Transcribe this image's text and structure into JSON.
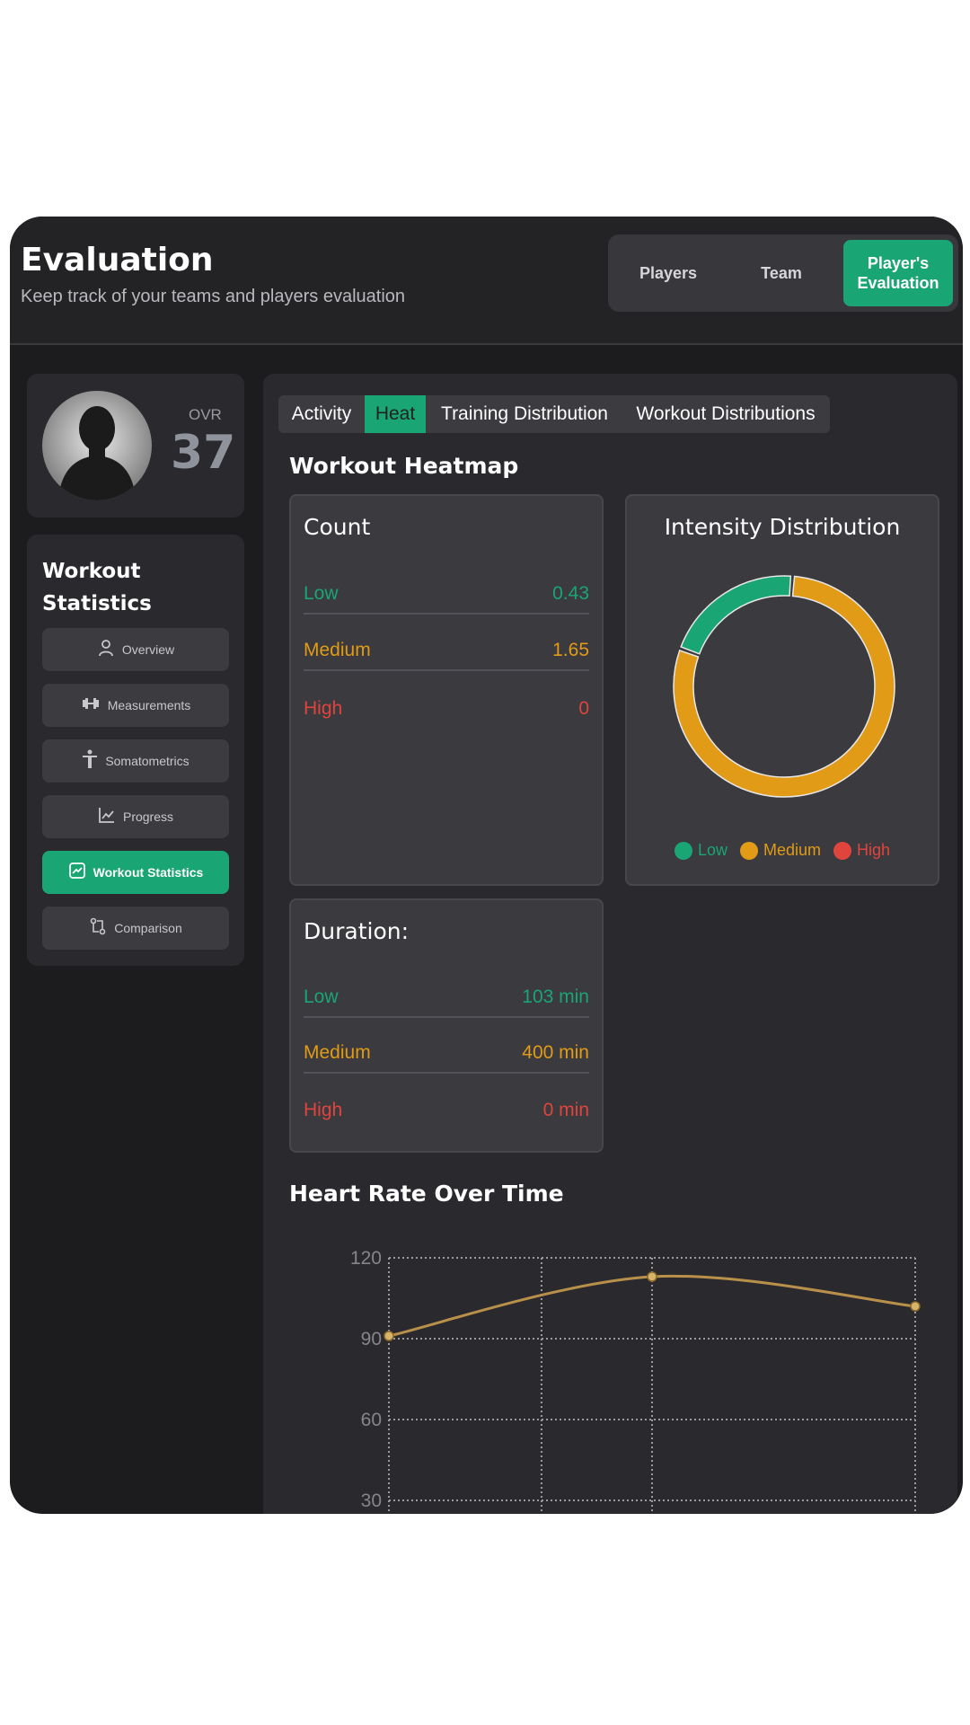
{
  "header": {
    "title": "Evaluation",
    "subtitle": "Keep track of your teams and players evaluation",
    "segments": [
      {
        "label": "Players",
        "active": false
      },
      {
        "label": "Team",
        "active": false
      },
      {
        "label": "Player's Evaluation",
        "active": true
      }
    ]
  },
  "profile": {
    "ovr_label": "OVR",
    "ovr_value": "37"
  },
  "sidebar": {
    "title": "Workout Statistics",
    "items": [
      {
        "label": "Overview",
        "icon": "user-icon",
        "active": false
      },
      {
        "label": "Measurements",
        "icon": "dumbbell-icon",
        "active": false
      },
      {
        "label": "Somatometrics",
        "icon": "body-icon",
        "active": false
      },
      {
        "label": "Progress",
        "icon": "line-chart-icon",
        "active": false
      },
      {
        "label": "Workout Statistics",
        "icon": "stats-icon",
        "active": true
      },
      {
        "label": "Comparison",
        "icon": "compare-icon",
        "active": false
      }
    ]
  },
  "tabs": [
    {
      "label": "Activity",
      "active": false
    },
    {
      "label": "Heat",
      "active": true
    },
    {
      "label": "Training Distribution",
      "active": false
    },
    {
      "label": "Workout Distributions",
      "active": false
    }
  ],
  "heatmap": {
    "title": "Workout Heatmap",
    "count": {
      "title": "Count",
      "rows": [
        {
          "label": "Low",
          "value": "0.43"
        },
        {
          "label": "Medium",
          "value": "1.65"
        },
        {
          "label": "High",
          "value": "0"
        }
      ]
    },
    "intensity": {
      "title": "Intensity Distribution",
      "legend": [
        "Low",
        "Medium",
        "High"
      ]
    },
    "duration": {
      "title": "Duration:",
      "rows": [
        {
          "label": "Low",
          "value": "103 min"
        },
        {
          "label": "Medium",
          "value": "400 min"
        },
        {
          "label": "High",
          "value": "0 min"
        }
      ]
    }
  },
  "heart_rate": {
    "title": "Heart Rate Over Time"
  },
  "colors": {
    "low": "#1aa574",
    "medium": "#e19b17",
    "high": "#e0453d",
    "accent": "#1aa574",
    "line": "#b9904a"
  },
  "chart_data": [
    {
      "type": "pie",
      "title": "Intensity Distribution",
      "categories": [
        "Low",
        "Medium",
        "High"
      ],
      "values": [
        0.43,
        1.65,
        0
      ],
      "donut": true,
      "legend": "bottom"
    },
    {
      "type": "line",
      "title": "Heart Rate Over Time",
      "x": [
        0,
        1,
        2
      ],
      "series": [
        {
          "values": [
            91,
            113,
            102
          ]
        }
      ],
      "yticks": [
        30,
        60,
        90,
        120
      ],
      "ylim": [
        0,
        120
      ],
      "grid": true
    }
  ]
}
